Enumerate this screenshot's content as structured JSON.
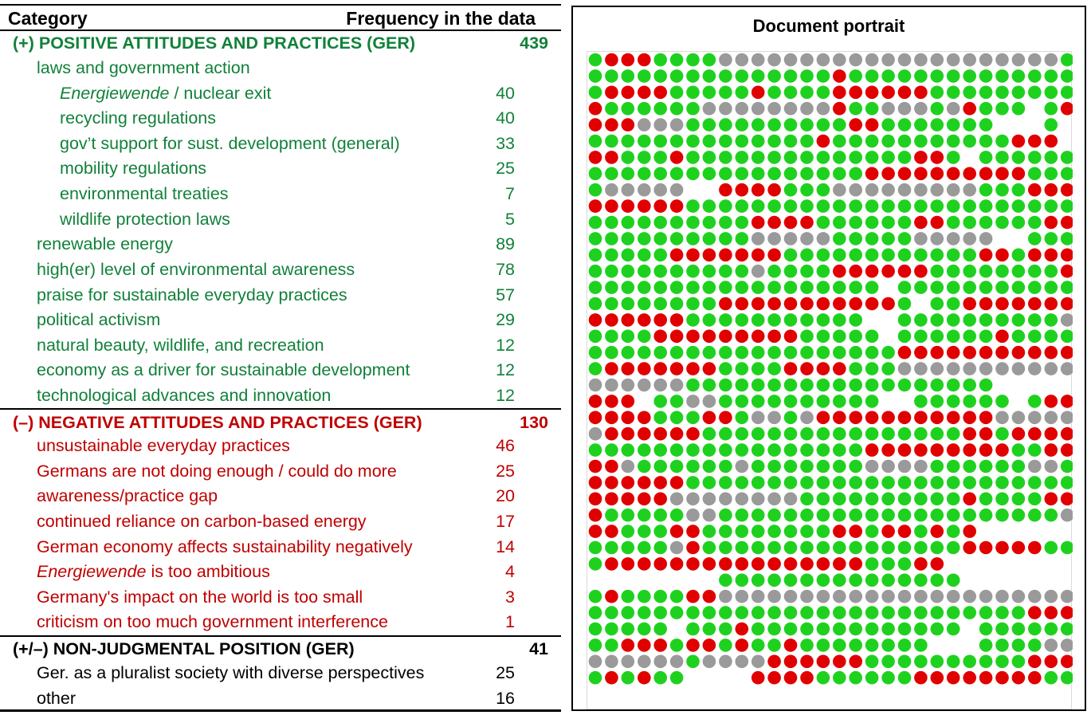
{
  "table": {
    "header_category": "Category",
    "header_frequency": "Frequency in the data",
    "positive": {
      "label": "(+) POSITIVE ATTITUDES AND PRACTICES (GER)",
      "value": "439",
      "laws": {
        "label": "laws and government action",
        "items": [
          {
            "label_em": "Energiewende",
            "label": " / nuclear exit",
            "value": "40"
          },
          {
            "label_em": "",
            "label": "recycling regulations",
            "value": "40"
          },
          {
            "label_em": "",
            "label": "gov’t support for sust. development (general)",
            "value": "33"
          },
          {
            "label_em": "",
            "label": "mobility regulations",
            "value": "25"
          },
          {
            "label_em": "",
            "label": "environmental treaties",
            "value": "7"
          },
          {
            "label_em": "",
            "label": "wildlife protection laws",
            "value": "5"
          }
        ]
      },
      "items": [
        {
          "label": "renewable energy",
          "value": "89"
        },
        {
          "label": "high(er) level of environmental awareness",
          "value": "78"
        },
        {
          "label": "praise for sustainable everyday practices",
          "value": "57"
        },
        {
          "label": "political activism",
          "value": "29"
        },
        {
          "label": "natural beauty, wildlife, and recreation",
          "value": "12"
        },
        {
          "label": "economy as a driver for sustainable development",
          "value": "12"
        },
        {
          "label": "technological advances and innovation",
          "value": "12"
        }
      ]
    },
    "negative": {
      "label": "(–) NEGATIVE ATTITUDES AND PRACTICES (GER)",
      "value": "130",
      "items": [
        {
          "label_em": "",
          "label": "unsustainable everyday practices",
          "value": "46"
        },
        {
          "label_em": "",
          "label": "Germans are not doing enough / could do more",
          "value": "25"
        },
        {
          "label_em": "",
          "label": "awareness/practice gap",
          "value": "20"
        },
        {
          "label_em": "",
          "label": "continued reliance on carbon-based energy",
          "value": "17"
        },
        {
          "label_em": "",
          "label": "German economy affects sustainability negatively",
          "value": "14"
        },
        {
          "label_em": "Energiewende",
          "label": " is too ambitious",
          "value": "4"
        },
        {
          "label_em": "",
          "label": "Germany's impact on the world is too small",
          "value": "3"
        },
        {
          "label_em": "",
          "label": "criticism on too much government interference",
          "value": "1"
        }
      ]
    },
    "neutral": {
      "label": "(+/–) NON-JUDGMENTAL POSITION (GER)",
      "value": "41",
      "items": [
        {
          "label": "Ger. as a pluralist society with diverse perspectives",
          "value": "25"
        },
        {
          "label": "other",
          "value": "16"
        }
      ]
    }
  },
  "portrait": {
    "title": "Document portrait",
    "colors": {
      "G": "#1fd11f",
      "R": "#e00000",
      "N": "#9a9a9a"
    },
    "rows": [
      "GRRRGGGGNNNNNNNNNNNNNNNNNNNNNGG",
      "GGGGGGGGGGGGGGGRGGGGGGGGGGGGGGG",
      "GRRRRGGGGGRGGGGRRRRRRGGGGGGGGGG",
      "RGGGGGGNNNNNNNNRGGNNNGNRGGG_GRR",
      "RRRNNNGGGGGGGGGGRRGGGGGGG___G_G",
      "GGGGGGGGGGGGGGRGGGGGGGGGGGRRR_G",
      "RRGGGRGGGGGGGGGGGGGGRRG_GGGGGGG",
      "GGGGGGGGGGGGGGGGGRRRRRRRRRRGGGR",
      "GNNNNN__RRRRGGGNNNNNNNNNGGGRRRR",
      "RRRRRRGGGGGGGGGGGGGGGGGGGGGGGGG",
      "GGGGGGGGGGRRRRGGGGGGRRGGGGGGRRR",
      "GGGGGGGGGGNNNNNGGGGGNNNNN__GGGG",
      "GGGGGRRRRRRRGGGGGGGGGGGGRRGRRRR",
      "GGGGGGGGGGNGGGGRRRRRRGGGGGGGGRR",
      "GGGGGGGGGGGGGGGGGG_GGGGGGGGGGGG",
      "GGGGGGGGRRRRRRRRRRRG_GGRRRRRRRR",
      "RRRRRRGGGGGGGGGGG__GGGGGGGGGGNG",
      "GGGGRRRRRRRRRGGGGG_GGGGGGRGGGGG",
      "GGGGGGGGGGGGGGGGGGGRRRRRRRRRRRR",
      "GRRRRRRRGGGGRRRRGGGNNNNNNNNNNNN",
      "NNNNNNGGGGGGGGGGGGGGGGGGG_____RR",
      "RRR_GGNNGGGGGGGGGG__GGGGGG_GRRRR",
      "RRRRGGGRRGNNGNRRRRRRRRRRRNNNNNN",
      "NRRRRRRGGGGGGGGGGGGGGGGRRGRRRRR",
      "GGGGGGGGGGGGGGGGGRRRRRRRRRGGRR",
      "RRNGGGGGGNGGGGGGGNNNNGGGGGGNNGR",
      "RRRRRRGGGGGGGGGGGGGGGGGGGGGGGGG",
      "RRRRRNNNNNNNNGGGGGGGGGGRGGGGRRR",
      "RGGGGGNNGGGGGGGGGGGGGGGGGGGGGNG",
      "RRGGGRRGGGGGGGGRRGRRGRGR_______",
      "GGGGGNRGGGGGGGGGGGGGGGGRRRRRGGG",
      "GRRRRRRRRRRRRRRRRGGGRR_________",
      "________GGGGGGGGGGGGGGG_______GG",
      "GRGGGGRRNNNNNNNNNNNNNNNNNNNNNNG",
      "GGGGGGGGGGGGGGGGGGGGGGGGGGGRRRG",
      "GGGGG_GGGRGGGGGGGGGGGGG_GGGGGGR",
      "GGRRRGRRGRGGRGGGGGGGG___GGGGNNG",
      "NNNNNNGNNNNRRRRRRGGGGGGGGGGRRRR",
      "GRGRGG____RRRRGGGGGGRRRRRRRRGGG"
    ]
  }
}
